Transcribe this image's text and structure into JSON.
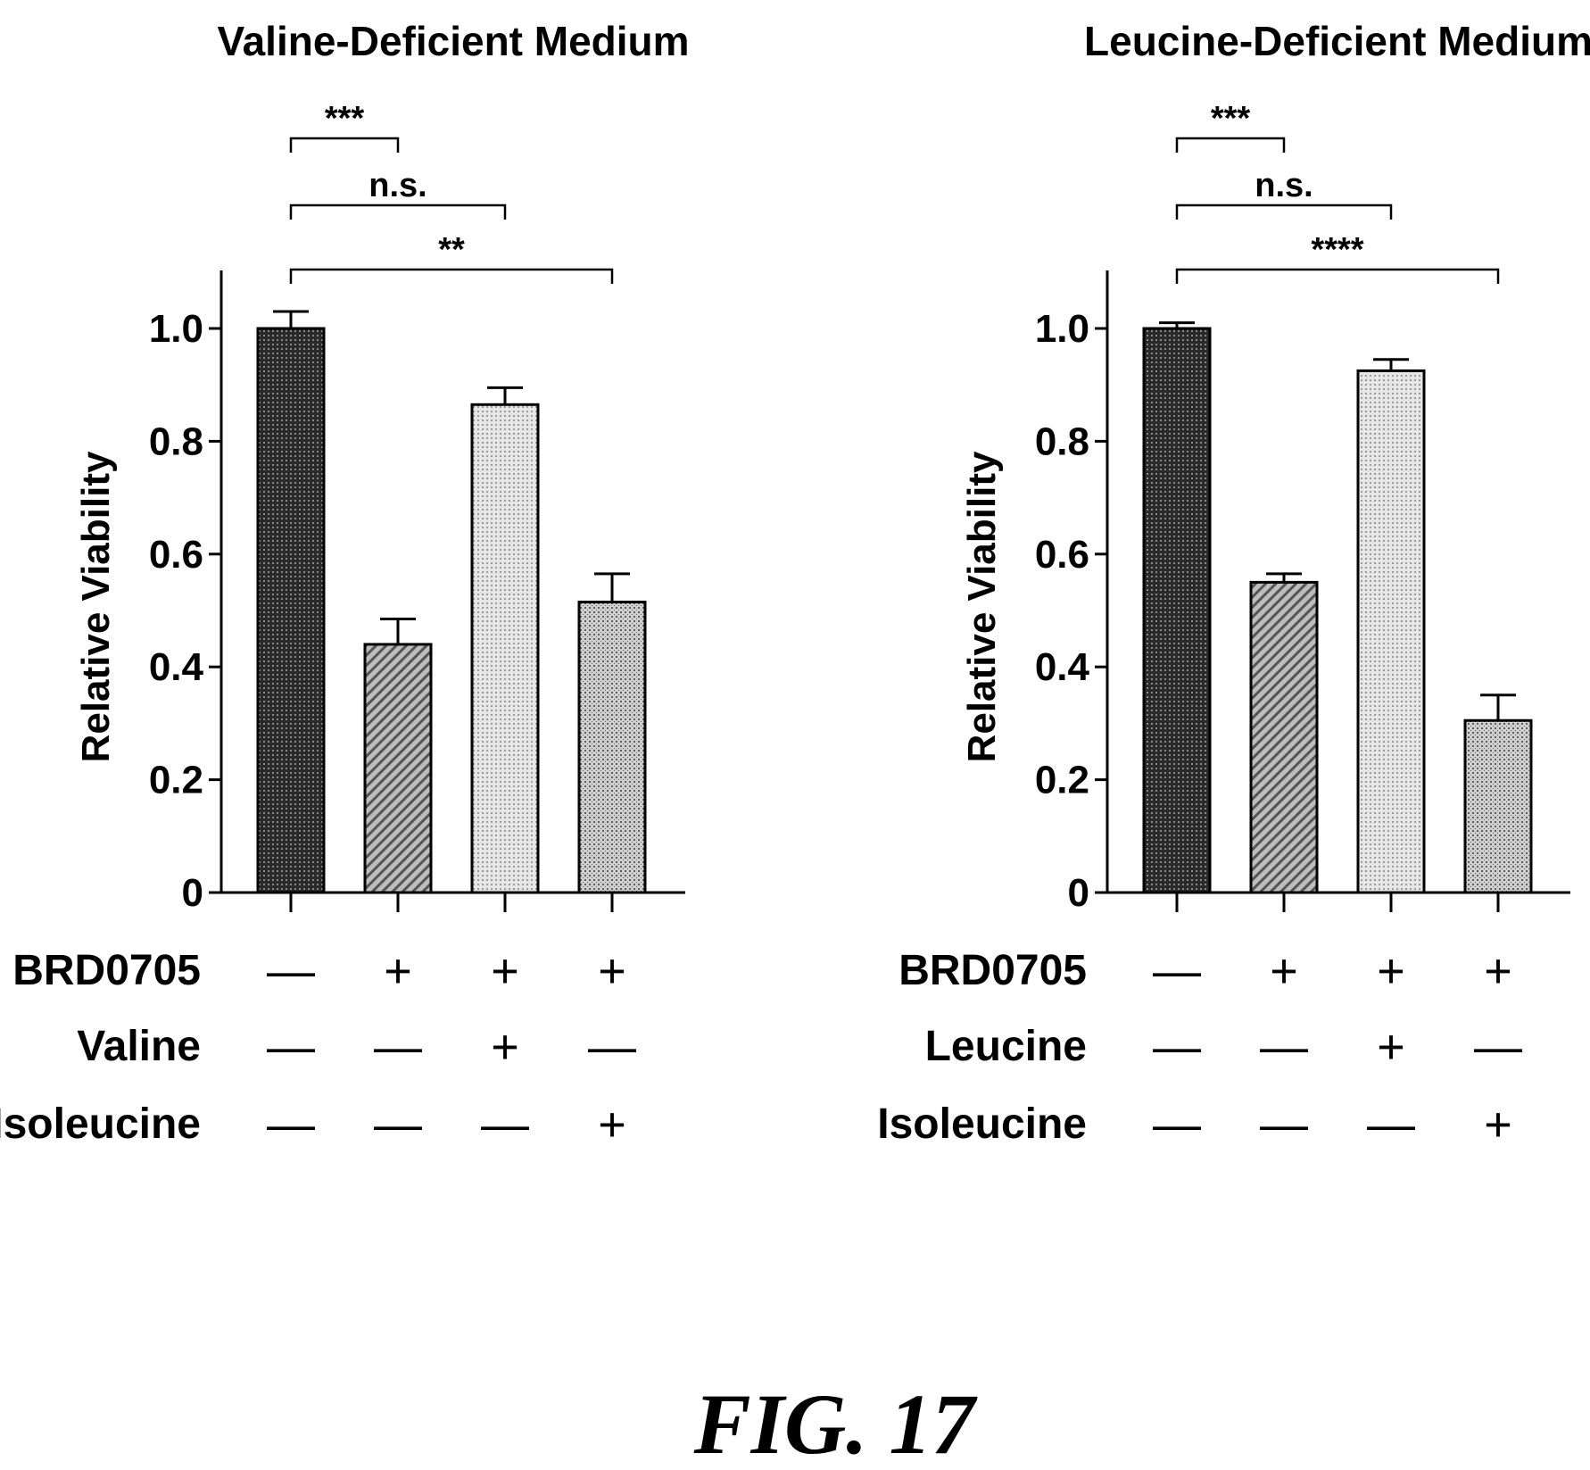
{
  "figure_label": "FIG. 17",
  "chart_data": [
    {
      "type": "bar",
      "title": "Valine-Deficient Medium",
      "ylabel": "Relative Viability",
      "xlabel": "",
      "ylim": [
        0,
        1.0
      ],
      "yticks": [
        0,
        0.2,
        0.4,
        0.6,
        0.8,
        1.0
      ],
      "ytick_labels": [
        "0",
        "0.2",
        "0.4",
        "0.6",
        "0.8",
        "1.0"
      ],
      "values": [
        1.0,
        0.44,
        0.865,
        0.515
      ],
      "errors": [
        0.03,
        0.045,
        0.03,
        0.05
      ],
      "patterns": [
        "dark",
        "hatch",
        "light",
        "medium"
      ],
      "conditions": [
        {
          "label": "BRD0705",
          "values": [
            "—",
            "+",
            "+",
            "+"
          ]
        },
        {
          "label": "Valine",
          "values": [
            "—",
            "—",
            "+",
            "—"
          ]
        },
        {
          "label": "Isoleucine",
          "values": [
            "—",
            "—",
            "—",
            "+"
          ]
        }
      ],
      "comparisons": [
        {
          "from": 0,
          "to": 1,
          "label": "***"
        },
        {
          "from": 0,
          "to": 2,
          "label": "n.s."
        },
        {
          "from": 0,
          "to": 3,
          "label": "**"
        }
      ],
      "grid": false,
      "legend": "none"
    },
    {
      "type": "bar",
      "title": "Leucine-Deficient Medium",
      "ylabel": "Relative Viability",
      "xlabel": "",
      "ylim": [
        0,
        1.0
      ],
      "yticks": [
        0,
        0.2,
        0.4,
        0.6,
        0.8,
        1.0
      ],
      "ytick_labels": [
        "0",
        "0.2",
        "0.4",
        "0.6",
        "0.8",
        "1.0"
      ],
      "values": [
        1.0,
        0.55,
        0.925,
        0.305
      ],
      "errors": [
        0.01,
        0.015,
        0.02,
        0.045
      ],
      "patterns": [
        "dark",
        "hatch",
        "light",
        "medium"
      ],
      "conditions": [
        {
          "label": "BRD0705",
          "values": [
            "—",
            "+",
            "+",
            "+"
          ]
        },
        {
          "label": "Leucine",
          "values": [
            "—",
            "—",
            "+",
            "—"
          ]
        },
        {
          "label": "Isoleucine",
          "values": [
            "—",
            "—",
            "—",
            "+"
          ]
        }
      ],
      "comparisons": [
        {
          "from": 0,
          "to": 1,
          "label": "***"
        },
        {
          "from": 0,
          "to": 2,
          "label": "n.s."
        },
        {
          "from": 0,
          "to": 3,
          "label": "****"
        }
      ],
      "grid": false,
      "legend": "none"
    }
  ]
}
